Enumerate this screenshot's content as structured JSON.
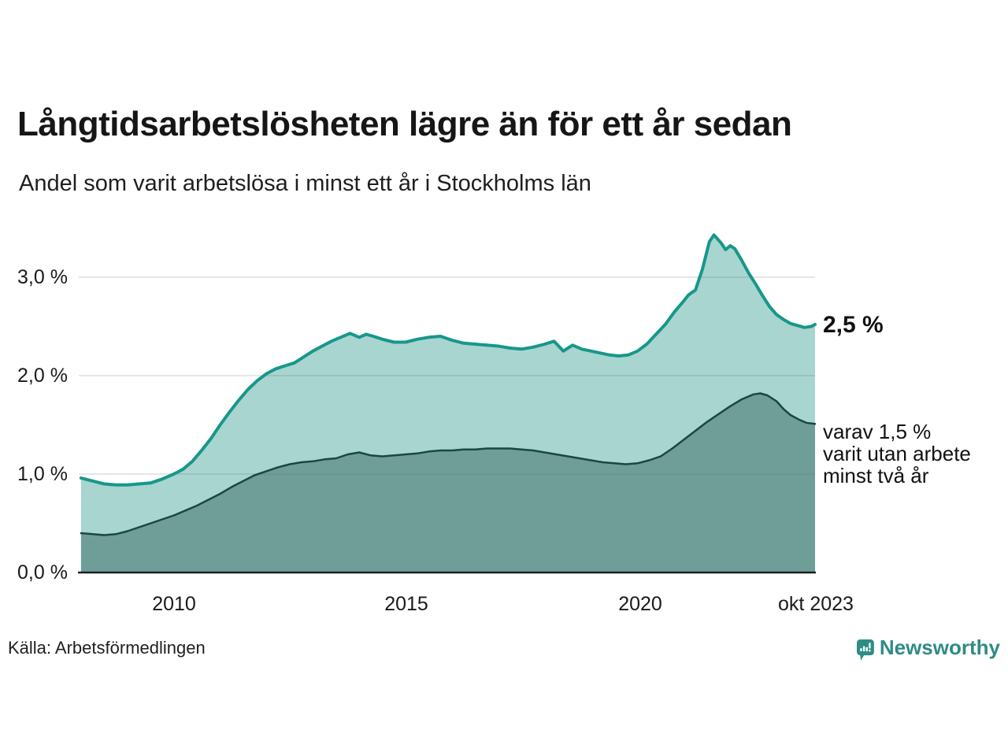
{
  "header": {
    "title": "Långtidsarbetslösheten lägre än för ett år sedan",
    "subtitle": "Andel som varit arbetslösa i minst ett år i Stockholms län"
  },
  "annotations": {
    "total_label": "2,5 %",
    "subset_label_lines": [
      "varav 1,5 %",
      "varit utan arbete",
      "minst två år"
    ]
  },
  "footer": {
    "source": "Källa: Arbetsförmedlingen",
    "brand": "Newsworthy"
  },
  "colors": {
    "title_text": "#161616",
    "body_text": "#1f1f1f",
    "line_one_year": "#17978a",
    "fill_one_year": "#a8d5cf",
    "line_two_years": "#1c4642",
    "fill_two_years": "#6f9e99",
    "gridline": "#646464",
    "axis": "#1f1f1f",
    "brand_teal": "#2f8b85"
  },
  "chart_data": {
    "type": "area",
    "title": "Långtidsarbetslösheten lägre än för ett år sedan",
    "subtitle": "Andel som varit arbetslösa i minst ett år i Stockholms län",
    "xlabel": "",
    "ylabel": "",
    "xlim": [
      2007.95,
      2023.83
    ],
    "ylim": [
      0,
      3.5
    ],
    "grid": true,
    "legend_position": "right-annotations",
    "y_ticks": [
      {
        "value": 0,
        "label": "0,0 %"
      },
      {
        "value": 1,
        "label": "1,0 %"
      },
      {
        "value": 2,
        "label": "2,0 %"
      },
      {
        "value": 3,
        "label": "3,0 %"
      }
    ],
    "x_ticks": [
      {
        "year": 2010,
        "label": "2010"
      },
      {
        "year": 2015,
        "label": "2015"
      },
      {
        "year": 2020,
        "label": "2020"
      },
      {
        "year": 2023.83,
        "label": "okt 2023"
      }
    ],
    "series": [
      {
        "name": "Arbetslösa minst ett år",
        "end_value_label": "2,5 %",
        "stroke": "#17978a",
        "stroke_width": 4,
        "fill": "#a8d5cf",
        "points": [
          [
            2008.0,
            0.96
          ],
          [
            2008.25,
            0.93
          ],
          [
            2008.5,
            0.9
          ],
          [
            2008.75,
            0.89
          ],
          [
            2009.0,
            0.89
          ],
          [
            2009.25,
            0.9
          ],
          [
            2009.5,
            0.91
          ],
          [
            2009.75,
            0.95
          ],
          [
            2010.0,
            1.0
          ],
          [
            2010.2,
            1.05
          ],
          [
            2010.4,
            1.13
          ],
          [
            2010.6,
            1.24
          ],
          [
            2010.8,
            1.36
          ],
          [
            2011.0,
            1.5
          ],
          [
            2011.2,
            1.63
          ],
          [
            2011.4,
            1.75
          ],
          [
            2011.6,
            1.86
          ],
          [
            2011.8,
            1.95
          ],
          [
            2012.0,
            2.02
          ],
          [
            2012.2,
            2.07
          ],
          [
            2012.4,
            2.1
          ],
          [
            2012.6,
            2.13
          ],
          [
            2012.8,
            2.19
          ],
          [
            2013.0,
            2.25
          ],
          [
            2013.2,
            2.3
          ],
          [
            2013.4,
            2.35
          ],
          [
            2013.6,
            2.39
          ],
          [
            2013.8,
            2.43
          ],
          [
            2014.0,
            2.39
          ],
          [
            2014.15,
            2.42
          ],
          [
            2014.3,
            2.4
          ],
          [
            2014.5,
            2.37
          ],
          [
            2014.75,
            2.34
          ],
          [
            2015.0,
            2.34
          ],
          [
            2015.25,
            2.37
          ],
          [
            2015.5,
            2.39
          ],
          [
            2015.75,
            2.4
          ],
          [
            2016.0,
            2.36
          ],
          [
            2016.25,
            2.33
          ],
          [
            2016.5,
            2.32
          ],
          [
            2016.75,
            2.31
          ],
          [
            2017.0,
            2.3
          ],
          [
            2017.25,
            2.28
          ],
          [
            2017.5,
            2.27
          ],
          [
            2017.75,
            2.29
          ],
          [
            2018.0,
            2.32
          ],
          [
            2018.2,
            2.35
          ],
          [
            2018.4,
            2.25
          ],
          [
            2018.6,
            2.31
          ],
          [
            2018.8,
            2.27
          ],
          [
            2019.0,
            2.25
          ],
          [
            2019.2,
            2.23
          ],
          [
            2019.4,
            2.21
          ],
          [
            2019.6,
            2.2
          ],
          [
            2019.8,
            2.21
          ],
          [
            2020.0,
            2.25
          ],
          [
            2020.2,
            2.32
          ],
          [
            2020.4,
            2.42
          ],
          [
            2020.6,
            2.52
          ],
          [
            2020.8,
            2.65
          ],
          [
            2021.0,
            2.76
          ],
          [
            2021.1,
            2.82
          ],
          [
            2021.25,
            2.87
          ],
          [
            2021.4,
            3.08
          ],
          [
            2021.55,
            3.36
          ],
          [
            2021.65,
            3.43
          ],
          [
            2021.8,
            3.35
          ],
          [
            2021.9,
            3.28
          ],
          [
            2022.0,
            3.32
          ],
          [
            2022.1,
            3.29
          ],
          [
            2022.25,
            3.17
          ],
          [
            2022.4,
            3.04
          ],
          [
            2022.55,
            2.93
          ],
          [
            2022.7,
            2.81
          ],
          [
            2022.85,
            2.7
          ],
          [
            2023.0,
            2.62
          ],
          [
            2023.15,
            2.57
          ],
          [
            2023.3,
            2.53
          ],
          [
            2023.45,
            2.51
          ],
          [
            2023.6,
            2.49
          ],
          [
            2023.75,
            2.5
          ],
          [
            2023.83,
            2.52
          ]
        ]
      },
      {
        "name": "varav varit utan arbete minst två år",
        "end_value_label": "varav 1,5 %",
        "stroke": "#1c4642",
        "stroke_width": 2.5,
        "fill": "#6f9e99",
        "points": [
          [
            2008.0,
            0.4
          ],
          [
            2008.25,
            0.39
          ],
          [
            2008.5,
            0.38
          ],
          [
            2008.75,
            0.39
          ],
          [
            2009.0,
            0.42
          ],
          [
            2009.25,
            0.46
          ],
          [
            2009.5,
            0.5
          ],
          [
            2009.75,
            0.54
          ],
          [
            2010.0,
            0.58
          ],
          [
            2010.25,
            0.63
          ],
          [
            2010.5,
            0.68
          ],
          [
            2010.75,
            0.74
          ],
          [
            2011.0,
            0.8
          ],
          [
            2011.25,
            0.87
          ],
          [
            2011.5,
            0.93
          ],
          [
            2011.75,
            0.99
          ],
          [
            2012.0,
            1.03
          ],
          [
            2012.25,
            1.07
          ],
          [
            2012.5,
            1.1
          ],
          [
            2012.75,
            1.12
          ],
          [
            2013.0,
            1.13
          ],
          [
            2013.25,
            1.15
          ],
          [
            2013.5,
            1.16
          ],
          [
            2013.75,
            1.2
          ],
          [
            2014.0,
            1.22
          ],
          [
            2014.25,
            1.19
          ],
          [
            2014.5,
            1.18
          ],
          [
            2014.75,
            1.19
          ],
          [
            2015.0,
            1.2
          ],
          [
            2015.25,
            1.21
          ],
          [
            2015.5,
            1.23
          ],
          [
            2015.75,
            1.24
          ],
          [
            2016.0,
            1.24
          ],
          [
            2016.25,
            1.25
          ],
          [
            2016.5,
            1.25
          ],
          [
            2016.75,
            1.26
          ],
          [
            2017.0,
            1.26
          ],
          [
            2017.25,
            1.26
          ],
          [
            2017.5,
            1.25
          ],
          [
            2017.75,
            1.24
          ],
          [
            2018.0,
            1.22
          ],
          [
            2018.25,
            1.2
          ],
          [
            2018.5,
            1.18
          ],
          [
            2018.75,
            1.16
          ],
          [
            2019.0,
            1.14
          ],
          [
            2019.25,
            1.12
          ],
          [
            2019.5,
            1.11
          ],
          [
            2019.75,
            1.1
          ],
          [
            2020.0,
            1.11
          ],
          [
            2020.25,
            1.14
          ],
          [
            2020.5,
            1.18
          ],
          [
            2020.75,
            1.26
          ],
          [
            2021.0,
            1.35
          ],
          [
            2021.25,
            1.44
          ],
          [
            2021.5,
            1.53
          ],
          [
            2021.75,
            1.61
          ],
          [
            2022.0,
            1.69
          ],
          [
            2022.25,
            1.76
          ],
          [
            2022.5,
            1.81
          ],
          [
            2022.65,
            1.82
          ],
          [
            2022.8,
            1.8
          ],
          [
            2023.0,
            1.74
          ],
          [
            2023.15,
            1.66
          ],
          [
            2023.3,
            1.6
          ],
          [
            2023.5,
            1.55
          ],
          [
            2023.65,
            1.52
          ],
          [
            2023.83,
            1.51
          ]
        ]
      }
    ]
  }
}
